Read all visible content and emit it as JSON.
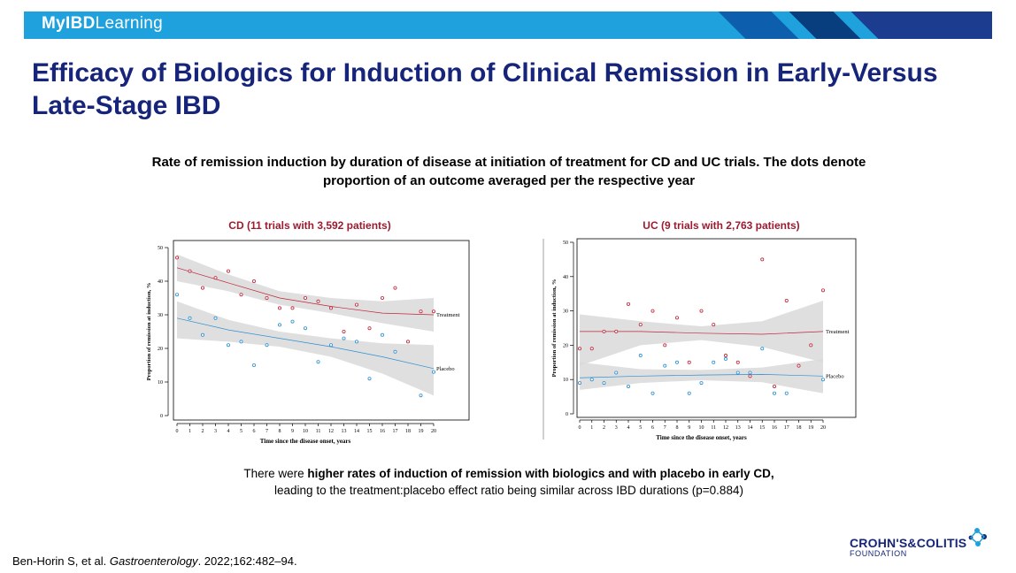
{
  "header": {
    "logo_prefix": "MyIBD",
    "logo_suffix": "Learning"
  },
  "slide": {
    "title": "Efficacy of Biologics for Induction of Clinical Remission in Early-Versus Late-Stage IBD",
    "subtitle": "Rate of remission induction by duration of disease at initiation of treatment for CD and UC trials. The dots denote proportion of an outcome averaged per the respective year",
    "conclusion_pre": "There were ",
    "conclusion_bold": "higher rates of induction of remission with biologics and with placebo in early CD,",
    "conclusion_post": "leading to the treatment:placebo effect ratio being similar across IBD durations (p=0.884)",
    "citation_pre": "Ben-Horin S, et al. ",
    "citation_journal": "Gastroenterology",
    "citation_post": ". 2022;162:482–94.",
    "brand_line1": "CROHN'S&COLITIS",
    "brand_line2": "FOUNDATION"
  },
  "colors": {
    "title": "#16257a",
    "topbar": "#1ea1dc",
    "panel_title": "#9b1b30",
    "treatment": "#c0243a",
    "placebo": "#2a8fd1",
    "band": "#d9d9d9"
  },
  "chart_data": [
    {
      "type": "scatter",
      "title": "CD (11 trials with 3,592 patients)",
      "xlabel": "Time since the disease onset, years",
      "ylabel": "Proportion of remission at induction, %",
      "xlim": [
        0,
        20
      ],
      "ylim": [
        0,
        50
      ],
      "xticks": [
        "0",
        "1",
        "2",
        "3",
        "4",
        "5",
        "6",
        "7",
        "8",
        "9",
        "10",
        "11",
        "12",
        "13",
        "14",
        "15",
        "16",
        "17",
        "18",
        "19",
        "20"
      ],
      "yticks": [
        "0",
        "10",
        "20",
        "30",
        "40",
        "50"
      ],
      "series": [
        {
          "name": "Treatment",
          "color": "#c0243a",
          "points": [
            [
              0,
              47
            ],
            [
              1,
              43
            ],
            [
              2,
              38
            ],
            [
              3,
              41
            ],
            [
              4,
              43
            ],
            [
              5,
              36
            ],
            [
              6,
              40
            ],
            [
              7,
              35
            ],
            [
              8,
              32
            ],
            [
              9,
              32
            ],
            [
              10,
              35
            ],
            [
              11,
              34
            ],
            [
              12,
              32
            ],
            [
              13,
              25
            ],
            [
              14,
              33
            ],
            [
              15,
              26
            ],
            [
              16,
              35
            ],
            [
              17,
              38
            ],
            [
              18,
              22
            ],
            [
              19,
              31
            ],
            [
              20,
              31
            ]
          ],
          "trend": [
            [
              0,
              44
            ],
            [
              4,
              39.5
            ],
            [
              8,
              35
            ],
            [
              12,
              32.5
            ],
            [
              16,
              30.5
            ],
            [
              20,
              30
            ]
          ],
          "band_upper": [
            [
              0,
              48
            ],
            [
              4,
              42
            ],
            [
              8,
              37
            ],
            [
              12,
              35
            ],
            [
              16,
              34
            ],
            [
              20,
              35
            ]
          ],
          "band_lower": [
            [
              0,
              40
            ],
            [
              4,
              37
            ],
            [
              8,
              33
            ],
            [
              12,
              30.5
            ],
            [
              16,
              27.5
            ],
            [
              20,
              25
            ]
          ]
        },
        {
          "name": "Placebo",
          "color": "#2a8fd1",
          "points": [
            [
              0,
              36
            ],
            [
              1,
              29
            ],
            [
              2,
              24
            ],
            [
              3,
              29
            ],
            [
              4,
              21
            ],
            [
              5,
              22
            ],
            [
              6,
              15
            ],
            [
              7,
              21
            ],
            [
              8,
              27
            ],
            [
              9,
              28
            ],
            [
              10,
              26
            ],
            [
              11,
              16
            ],
            [
              12,
              21
            ],
            [
              13,
              23
            ],
            [
              14,
              22
            ],
            [
              15,
              11
            ],
            [
              16,
              24
            ],
            [
              17,
              19
            ],
            [
              19,
              6
            ],
            [
              20,
              13
            ]
          ],
          "trend": [
            [
              0,
              29
            ],
            [
              4,
              25.5
            ],
            [
              8,
              23
            ],
            [
              12,
              20.5
            ],
            [
              16,
              17.5
            ],
            [
              20,
              14
            ]
          ],
          "band_upper": [
            [
              0,
              34
            ],
            [
              4,
              28.5
            ],
            [
              8,
              25
            ],
            [
              12,
              23
            ],
            [
              16,
              21.5
            ],
            [
              20,
              21
            ]
          ],
          "band_lower": [
            [
              0,
              23
            ],
            [
              4,
              22
            ],
            [
              8,
              20.5
            ],
            [
              12,
              17.5
            ],
            [
              16,
              12.5
            ],
            [
              20,
              6
            ]
          ]
        }
      ]
    },
    {
      "type": "scatter",
      "title": "UC (9 trials with 2,763 patients)",
      "xlabel": "Time since the disease onset, years",
      "ylabel": "Proportion of remission at induction, %",
      "xlim": [
        0,
        20
      ],
      "ylim": [
        0,
        50
      ],
      "xticks": [
        "0",
        "1",
        "2",
        "3",
        "4",
        "5",
        "6",
        "7",
        "8",
        "9",
        "10",
        "11",
        "12",
        "13",
        "14",
        "15",
        "16",
        "17",
        "18",
        "19",
        "20"
      ],
      "yticks": [
        "0",
        "10",
        "20",
        "30",
        "40",
        "50"
      ],
      "series": [
        {
          "name": "Treatment",
          "color": "#c0243a",
          "points": [
            [
              0,
              19
            ],
            [
              1,
              19
            ],
            [
              2,
              24
            ],
            [
              3,
              24
            ],
            [
              4,
              32
            ],
            [
              5,
              26
            ],
            [
              6,
              30
            ],
            [
              7,
              20
            ],
            [
              8,
              28
            ],
            [
              9,
              15
            ],
            [
              10,
              30
            ],
            [
              11,
              26
            ],
            [
              12,
              17
            ],
            [
              13,
              15
            ],
            [
              14,
              11
            ],
            [
              15,
              45
            ],
            [
              16,
              8
            ],
            [
              17,
              33
            ],
            [
              18,
              14
            ],
            [
              19,
              20
            ],
            [
              20,
              36
            ]
          ],
          "trend": [
            [
              0,
              24
            ],
            [
              5,
              24
            ],
            [
              10,
              23.5
            ],
            [
              15,
              23.2
            ],
            [
              20,
              24
            ]
          ],
          "band_upper": [
            [
              0,
              29
            ],
            [
              5,
              27
            ],
            [
              10,
              25.5
            ],
            [
              15,
              27
            ],
            [
              20,
              33
            ]
          ],
          "band_lower": [
            [
              0,
              14
            ],
            [
              5,
              20
            ],
            [
              10,
              21.5
            ],
            [
              15,
              19.5
            ],
            [
              20,
              15
            ]
          ]
        },
        {
          "name": "Placebo",
          "color": "#2a8fd1",
          "points": [
            [
              0,
              9
            ],
            [
              1,
              10
            ],
            [
              2,
              9
            ],
            [
              3,
              12
            ],
            [
              4,
              8
            ],
            [
              5,
              17
            ],
            [
              6,
              6
            ],
            [
              7,
              14
            ],
            [
              8,
              15
            ],
            [
              9,
              6
            ],
            [
              10,
              9
            ],
            [
              11,
              15
            ],
            [
              12,
              16
            ],
            [
              13,
              12
            ],
            [
              14,
              12
            ],
            [
              15,
              19
            ],
            [
              16,
              6
            ],
            [
              17,
              6
            ],
            [
              20,
              10
            ]
          ],
          "trend": [
            [
              0,
              10.5
            ],
            [
              5,
              11
            ],
            [
              10,
              11.3
            ],
            [
              15,
              11.5
            ],
            [
              20,
              11
            ]
          ],
          "band_upper": [
            [
              0,
              15
            ],
            [
              5,
              13
            ],
            [
              10,
              12.8
            ],
            [
              15,
              13.5
            ],
            [
              20,
              16
            ]
          ],
          "band_lower": [
            [
              0,
              7
            ],
            [
              5,
              9
            ],
            [
              10,
              9.8
            ],
            [
              15,
              9.2
            ],
            [
              20,
              6
            ]
          ]
        }
      ]
    }
  ]
}
